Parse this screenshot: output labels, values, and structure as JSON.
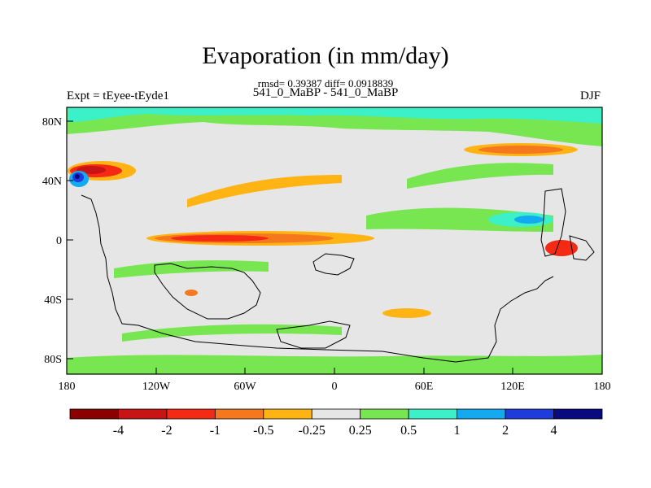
{
  "title": "Evaporation (in mm/day)",
  "stats_text": "rmsd= 0.39387 diff= 0.0918839",
  "left_label": "Expt = tEyee-tEyde1",
  "center_label": "541_0_MaBP - 541_0_MaBP",
  "right_label": "DJF",
  "axes": {
    "x_ticks": [
      "180",
      "120W",
      "60W",
      "0",
      "60E",
      "120E",
      "180"
    ],
    "y_ticks": [
      "80N",
      "40N",
      "0",
      "40S",
      "80S"
    ]
  },
  "colorbar": {
    "labels": [
      "-4",
      "-2",
      "-1",
      "-0.5",
      "-0.25",
      "0.25",
      "0.5",
      "1",
      "2",
      "4"
    ],
    "colors": [
      "#8b0000",
      "#c81414",
      "#f52a14",
      "#f5781e",
      "#ffb414",
      "#e6e6e6",
      "#78e650",
      "#3cf0c8",
      "#14aaf0",
      "#1e3cdc",
      "#0a0a80"
    ]
  }
}
